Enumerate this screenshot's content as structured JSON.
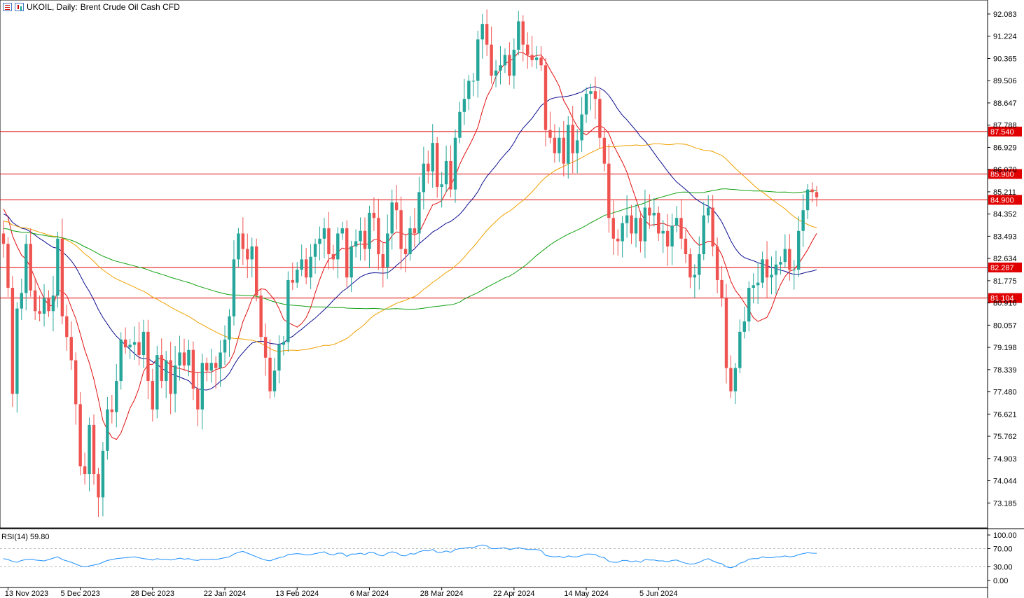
{
  "header": {
    "symbol": "UKOIL, Daily:",
    "description": "Brent Crude Oil Cash CFD",
    "icons": [
      "chart-list-icon",
      "chart-type-icon"
    ]
  },
  "chart_data": {
    "type": "candlestick",
    "price_ticks": [
      "92.083",
      "91.224",
      "90.365",
      "89.506",
      "88.647",
      "87.788",
      "86.929",
      "86.070",
      "85.211",
      "84.352",
      "83.493",
      "82.634",
      "81.775",
      "80.916",
      "80.057",
      "79.198",
      "78.339",
      "77.480",
      "76.621",
      "75.762",
      "74.903",
      "74.044",
      "73.185"
    ],
    "ylim": [
      72.4,
      92.55
    ],
    "levels": [
      {
        "label": "87.540",
        "value": 87.54
      },
      {
        "label": "85.900",
        "value": 85.9
      },
      {
        "label": "84.900",
        "value": 84.9
      },
      {
        "label": "82.287",
        "value": 82.287
      },
      {
        "label": "81.104",
        "value": 81.104
      }
    ],
    "x_ticks": [
      {
        "label": "13 Nov 2023",
        "index": 1
      },
      {
        "label": "5 Dec 2023",
        "index": 17
      },
      {
        "label": "28 Dec 2023",
        "index": 33
      },
      {
        "label": "22 Jan 2024",
        "index": 49
      },
      {
        "label": "13 Feb 2024",
        "index": 65
      },
      {
        "label": "6 Mar 2024",
        "index": 81
      },
      {
        "label": "28 Mar 2024",
        "index": 97
      },
      {
        "label": "22 Apr 2024",
        "index": 113
      },
      {
        "label": "14 May 2024",
        "index": 129
      },
      {
        "label": "5 Jun 2024",
        "index": 145
      }
    ],
    "closes": [
      83.2,
      81.5,
      77.4,
      80.7,
      81.3,
      83.2,
      81.4,
      80.6,
      80.5,
      81.1,
      80.6,
      81.2,
      83.4,
      80.4,
      79.6,
      78.7,
      77.0,
      74.6,
      74.3,
      76.2,
      74.3,
      73.4,
      75.2,
      76.8,
      76.7,
      77.9,
      79.5,
      79.2,
      79.3,
      79.4,
      78.9,
      79.8,
      77.9,
      76.8,
      78.9,
      77.9,
      78.7,
      77.4,
      78.5,
      79.0,
      78.5,
      79.1,
      77.6,
      76.8,
      78.6,
      78.3,
      78.6,
      78.4,
      79.0,
      79.5,
      80.4,
      82.6,
      83.6,
      83.0,
      82.6,
      83.1,
      81.2,
      79.6,
      78.8,
      77.5,
      78.3,
      79.3,
      79.4,
      81.8,
      81.7,
      82.2,
      82.6,
      81.9,
      82.7,
      83.2,
      83.4,
      83.8,
      82.8,
      82.6,
      83.6,
      83.8,
      81.9,
      83.1,
      83.3,
      83.7,
      83.0,
      84.4,
      84.2,
      82.8,
      82.3,
      83.6,
      84.8,
      84.5,
      83.0,
      82.8,
      83.8,
      83.6,
      85.2,
      86.3,
      86.0,
      87.1,
      85.4,
      85.5,
      86.4,
      85.3,
      87.3,
      88.3,
      88.8,
      89.5,
      89.5,
      91.1,
      91.7,
      90.9,
      89.7,
      89.9,
      90.1,
      90.5,
      89.7,
      90.7,
      91.8,
      90.9,
      90.5,
      90.3,
      90.4,
      90.1,
      87.6,
      87.3,
      86.7,
      87.3,
      86.3,
      87.8,
      86.7,
      87.2,
      88.2,
      89.0,
      89.1,
      88.8,
      87.3,
      86.3,
      84.2,
      83.4,
      83.3,
      84.0,
      84.3,
      83.6,
      84.2,
      83.3,
      84.6,
      84.3,
      84.4,
      83.6,
      83.7,
      83.1,
      83.9,
      84.2,
      83.4,
      82.8,
      81.9,
      82.0,
      82.8,
      84.3,
      84.6,
      83.1,
      81.8,
      81.1,
      78.4,
      77.5,
      78.4,
      79.8,
      80.2,
      81.5,
      81.6,
      81.7,
      82.6,
      81.9,
      82.0,
      82.4,
      82.5,
      83.0,
      82.2,
      82.2,
      83.7,
      84.5,
      85.3,
      85.2,
      85.0
    ],
    "moving_averages": [
      {
        "color": "#e01010"
      },
      {
        "color": "#101090"
      },
      {
        "color": "#f0a000"
      },
      {
        "color": "#10a010"
      }
    ],
    "rsi": {
      "label": "RSI(14) 59.80",
      "ticks": [
        "100.00",
        "70.00",
        "30.00",
        "0.00"
      ],
      "values": [
        48,
        46,
        42,
        40,
        44,
        46,
        47,
        45,
        44,
        43,
        46,
        49,
        52,
        46,
        43,
        40,
        36,
        32,
        30,
        32,
        34,
        36,
        40,
        44,
        46,
        48,
        49,
        50,
        51,
        52,
        50,
        48,
        47,
        45,
        48,
        46,
        47,
        45,
        47,
        49,
        47,
        48,
        45,
        44,
        47,
        46,
        47,
        46,
        48,
        50,
        52,
        58,
        62,
        64,
        60,
        56,
        52,
        48,
        45,
        43,
        47,
        50,
        52,
        57,
        58,
        59,
        58,
        56,
        57,
        59,
        61,
        63,
        58,
        56,
        60,
        60,
        53,
        58,
        58,
        60,
        57,
        62,
        61,
        56,
        54,
        60,
        63,
        61,
        55,
        54,
        59,
        58,
        63,
        66,
        65,
        68,
        62,
        62,
        65,
        62,
        68,
        70,
        71,
        73,
        72,
        76,
        78,
        76,
        70,
        70,
        71,
        72,
        68,
        70,
        72,
        70,
        68,
        68,
        68,
        66,
        55,
        53,
        52,
        53,
        50,
        54,
        52,
        52,
        55,
        58,
        58,
        57,
        52,
        50,
        42,
        40,
        40,
        44,
        44,
        41,
        43,
        40,
        46,
        45,
        45,
        43,
        43,
        41,
        44,
        45,
        41,
        38,
        36,
        37,
        40,
        45,
        48,
        43,
        39,
        37,
        30,
        28,
        31,
        38,
        41,
        47,
        48,
        48,
        52,
        50,
        50,
        52,
        52,
        54,
        52,
        53,
        57,
        59,
        61,
        60,
        59.8
      ]
    }
  }
}
